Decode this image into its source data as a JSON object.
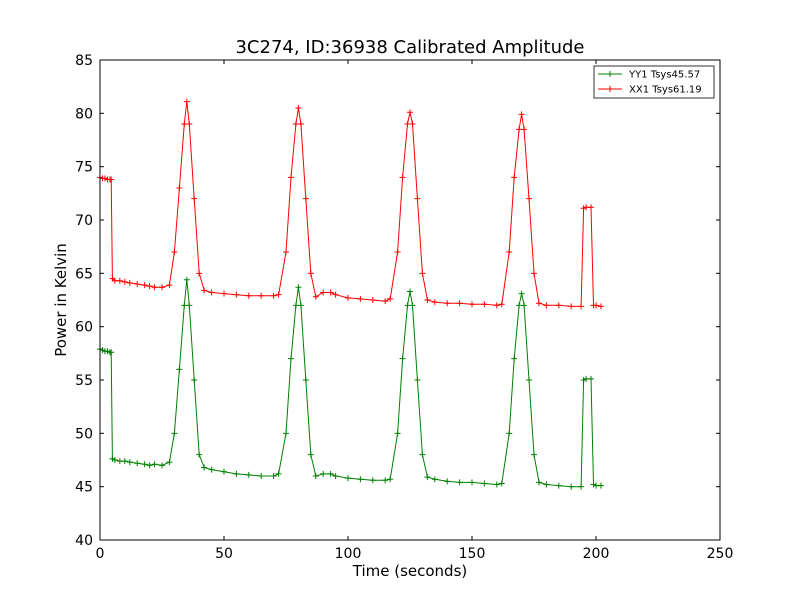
{
  "chart_data": {
    "type": "line",
    "title": "3C274, ID:36938 Calibrated Amplitude",
    "xlabel": "Time (seconds)",
    "ylabel": "Power in Kelvin",
    "xlim": [
      0,
      250
    ],
    "ylim": [
      40,
      85
    ],
    "xticks": [
      "0",
      "50",
      "100",
      "150",
      "200",
      "250"
    ],
    "yticks": [
      "40",
      "45",
      "50",
      "55",
      "60",
      "65",
      "70",
      "75",
      "80",
      "85"
    ],
    "grid": false,
    "legend_position": "top-right",
    "marker": "plus",
    "series": [
      {
        "name": "YY1 Tsys45.57",
        "color": "#008000",
        "points": [
          [
            0,
            57.9
          ],
          [
            1,
            57.8
          ],
          [
            2,
            57.7
          ],
          [
            3,
            57.7
          ],
          [
            4,
            57.6
          ],
          [
            4.5,
            57.6
          ],
          [
            5,
            47.6
          ],
          [
            6,
            47.5
          ],
          [
            8,
            47.4
          ],
          [
            10,
            47.4
          ],
          [
            12,
            47.3
          ],
          [
            15,
            47.2
          ],
          [
            18,
            47.1
          ],
          [
            20,
            47.0
          ],
          [
            22,
            47.1
          ],
          [
            25,
            47.0
          ],
          [
            28,
            47.3
          ],
          [
            30,
            50.0
          ],
          [
            32,
            56.0
          ],
          [
            34,
            62.0
          ],
          [
            35,
            64.4
          ],
          [
            36,
            62.0
          ],
          [
            38,
            55.0
          ],
          [
            40,
            48.0
          ],
          [
            42,
            46.8
          ],
          [
            45,
            46.6
          ],
          [
            50,
            46.4
          ],
          [
            55,
            46.2
          ],
          [
            60,
            46.1
          ],
          [
            65,
            46.0
          ],
          [
            70,
            46.0
          ],
          [
            72,
            46.2
          ],
          [
            75,
            50.0
          ],
          [
            77,
            57.0
          ],
          [
            79,
            62.0
          ],
          [
            80,
            63.7
          ],
          [
            81,
            62.0
          ],
          [
            83,
            55.0
          ],
          [
            85,
            48.0
          ],
          [
            87,
            46.0
          ],
          [
            90,
            46.2
          ],
          [
            93,
            46.2
          ],
          [
            95,
            46.0
          ],
          [
            100,
            45.8
          ],
          [
            105,
            45.7
          ],
          [
            110,
            45.6
          ],
          [
            115,
            45.6
          ],
          [
            117,
            45.7
          ],
          [
            120,
            50.0
          ],
          [
            122,
            57.0
          ],
          [
            124,
            62.0
          ],
          [
            125,
            63.3
          ],
          [
            126,
            62.0
          ],
          [
            128,
            55.0
          ],
          [
            130,
            48.0
          ],
          [
            132,
            45.9
          ],
          [
            135,
            45.7
          ],
          [
            140,
            45.5
          ],
          [
            145,
            45.4
          ],
          [
            150,
            45.4
          ],
          [
            155,
            45.3
          ],
          [
            160,
            45.2
          ],
          [
            162,
            45.3
          ],
          [
            165,
            50.0
          ],
          [
            167,
            57.0
          ],
          [
            169,
            62.0
          ],
          [
            170,
            63.1
          ],
          [
            171,
            62.0
          ],
          [
            173,
            55.0
          ],
          [
            175,
            48.0
          ],
          [
            177,
            45.4
          ],
          [
            180,
            45.2
          ],
          [
            185,
            45.1
          ],
          [
            190,
            45.0
          ],
          [
            194,
            45.0
          ],
          [
            195,
            55.0
          ],
          [
            196,
            55.1
          ],
          [
            198,
            55.1
          ],
          [
            199,
            45.2
          ],
          [
            200,
            45.1
          ],
          [
            202,
            45.1
          ]
        ]
      },
      {
        "name": "XX1 Tsys61.19",
        "color": "#ff0000",
        "points": [
          [
            0,
            74.0
          ],
          [
            1,
            73.9
          ],
          [
            2,
            73.9
          ],
          [
            3,
            73.8
          ],
          [
            4,
            73.8
          ],
          [
            4.5,
            73.8
          ],
          [
            5,
            64.5
          ],
          [
            6,
            64.3
          ],
          [
            8,
            64.3
          ],
          [
            10,
            64.2
          ],
          [
            12,
            64.1
          ],
          [
            15,
            64.0
          ],
          [
            18,
            63.9
          ],
          [
            20,
            63.8
          ],
          [
            22,
            63.7
          ],
          [
            25,
            63.7
          ],
          [
            28,
            63.9
          ],
          [
            30,
            67.0
          ],
          [
            32,
            73.0
          ],
          [
            34,
            79.0
          ],
          [
            35,
            81.1
          ],
          [
            36,
            79.0
          ],
          [
            38,
            72.0
          ],
          [
            40,
            65.0
          ],
          [
            42,
            63.4
          ],
          [
            45,
            63.2
          ],
          [
            50,
            63.1
          ],
          [
            55,
            63.0
          ],
          [
            60,
            62.9
          ],
          [
            65,
            62.9
          ],
          [
            70,
            62.9
          ],
          [
            72,
            63.0
          ],
          [
            75,
            67.0
          ],
          [
            77,
            74.0
          ],
          [
            79,
            79.0
          ],
          [
            80,
            80.5
          ],
          [
            81,
            79.0
          ],
          [
            83,
            72.0
          ],
          [
            85,
            65.0
          ],
          [
            87,
            62.8
          ],
          [
            90,
            63.2
          ],
          [
            93,
            63.2
          ],
          [
            95,
            63.0
          ],
          [
            100,
            62.7
          ],
          [
            105,
            62.6
          ],
          [
            110,
            62.5
          ],
          [
            115,
            62.4
          ],
          [
            117,
            62.6
          ],
          [
            120,
            67.0
          ],
          [
            122,
            74.0
          ],
          [
            124,
            79.0
          ],
          [
            125,
            80.1
          ],
          [
            126,
            79.0
          ],
          [
            128,
            72.0
          ],
          [
            130,
            65.0
          ],
          [
            132,
            62.5
          ],
          [
            135,
            62.3
          ],
          [
            140,
            62.2
          ],
          [
            145,
            62.2
          ],
          [
            150,
            62.1
          ],
          [
            155,
            62.1
          ],
          [
            160,
            62.0
          ],
          [
            162,
            62.1
          ],
          [
            165,
            67.0
          ],
          [
            167,
            74.0
          ],
          [
            169,
            78.5
          ],
          [
            170,
            79.9
          ],
          [
            171,
            78.5
          ],
          [
            173,
            72.0
          ],
          [
            175,
            65.0
          ],
          [
            177,
            62.2
          ],
          [
            180,
            62.0
          ],
          [
            185,
            62.0
          ],
          [
            190,
            61.9
          ],
          [
            194,
            61.9
          ],
          [
            195,
            71.1
          ],
          [
            196,
            71.2
          ],
          [
            198,
            71.2
          ],
          [
            199,
            62.0
          ],
          [
            200,
            62.0
          ],
          [
            202,
            61.9
          ]
        ]
      }
    ]
  }
}
